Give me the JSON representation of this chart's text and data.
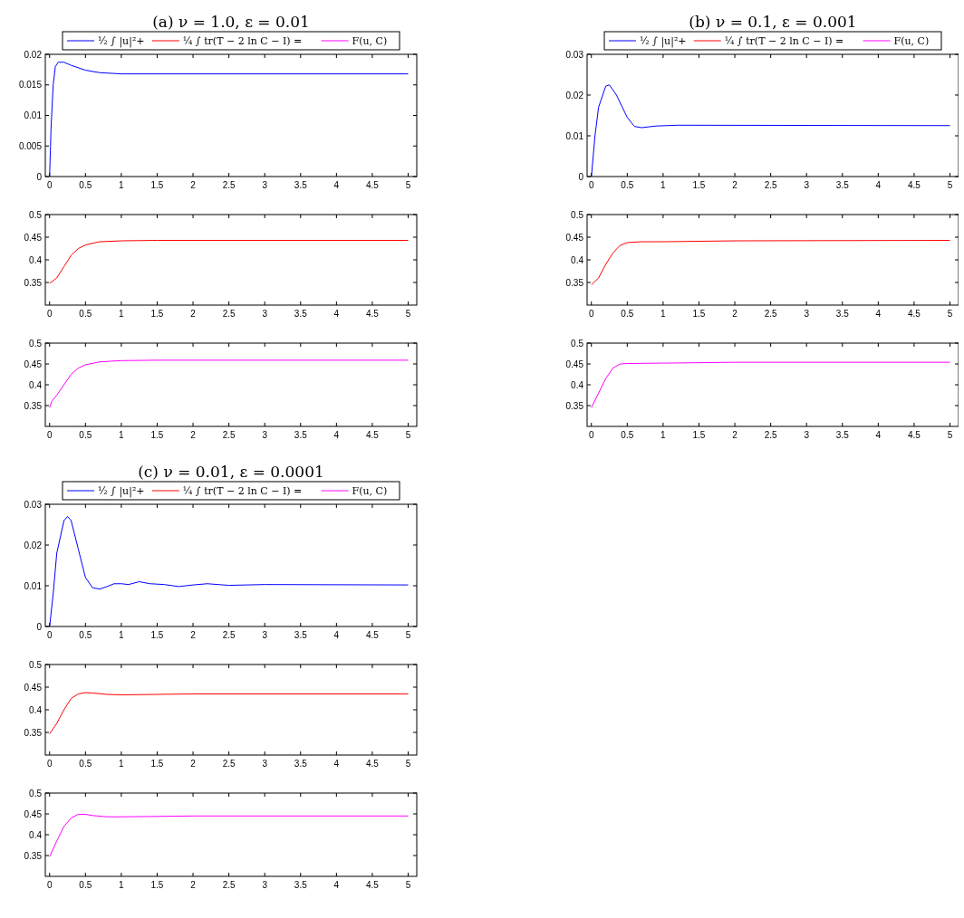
{
  "chart_data": [
    {
      "type": "line",
      "title": "(a) ν = 1.0, ε = 0.01",
      "legend": "top",
      "xlim": [
        -0.06,
        5.12
      ],
      "xticks": [
        0,
        0.5,
        1,
        1.5,
        2,
        2.5,
        3,
        3.5,
        4,
        4.5,
        5
      ],
      "ylim": [
        0,
        0.02
      ],
      "yticks": [
        0,
        0.005,
        0.01,
        0.015,
        0.02
      ],
      "series": [
        {
          "name": "½ ∫ |u|²+",
          "color": "#0000ff",
          "x": [
            0,
            0.02,
            0.05,
            0.08,
            0.12,
            0.2,
            0.3,
            0.5,
            0.7,
            1,
            5
          ],
          "values": [
            0,
            0.008,
            0.015,
            0.018,
            0.0187,
            0.0187,
            0.0182,
            0.0174,
            0.017,
            0.0168,
            0.0168
          ]
        }
      ]
    },
    {
      "type": "line",
      "xlim": [
        -0.06,
        5.12
      ],
      "xticks": [
        0,
        0.5,
        1,
        1.5,
        2,
        2.5,
        3,
        3.5,
        4,
        4.5,
        5
      ],
      "ylim": [
        0.3,
        0.5
      ],
      "yticks": [
        0.35,
        0.4,
        0.45,
        0.5
      ],
      "series": [
        {
          "name": "¼ ∫ tr(T − 2 ln C − I) =",
          "color": "#ff0000",
          "x": [
            0,
            0.1,
            0.2,
            0.3,
            0.4,
            0.5,
            0.7,
            1,
            1.5,
            5
          ],
          "values": [
            0.348,
            0.36,
            0.385,
            0.41,
            0.425,
            0.433,
            0.44,
            0.442,
            0.443,
            0.443
          ]
        }
      ]
    },
    {
      "type": "line",
      "xlim": [
        -0.06,
        5.12
      ],
      "xticks": [
        0,
        0.5,
        1,
        1.5,
        2,
        2.5,
        3,
        3.5,
        4,
        4.5,
        5
      ],
      "ylim": [
        0.3,
        0.5
      ],
      "yticks": [
        0.35,
        0.4,
        0.45,
        0.5
      ],
      "series": [
        {
          "name": "F(u, C)",
          "color": "#ff00ff",
          "x": [
            0,
            0.03,
            0.1,
            0.2,
            0.3,
            0.4,
            0.5,
            0.7,
            1,
            1.5,
            5
          ],
          "values": [
            0.345,
            0.36,
            0.375,
            0.4,
            0.425,
            0.44,
            0.448,
            0.455,
            0.458,
            0.459,
            0.459
          ]
        }
      ]
    },
    {
      "type": "line",
      "title": "(b) ν = 0.1, ε = 0.001",
      "legend": "top",
      "xlim": [
        -0.06,
        5.12
      ],
      "xticks": [
        0,
        0.5,
        1,
        1.5,
        2,
        2.5,
        3,
        3.5,
        4,
        4.5,
        5
      ],
      "ylim": [
        0,
        0.03
      ],
      "yticks": [
        0,
        0.01,
        0.02,
        0.03
      ],
      "series": [
        {
          "name": "½ ∫ |u|²+",
          "color": "#0000ff",
          "x": [
            0,
            0.05,
            0.1,
            0.2,
            0.25,
            0.35,
            0.5,
            0.6,
            0.7,
            0.9,
            1.2,
            5
          ],
          "values": [
            0,
            0.01,
            0.017,
            0.0222,
            0.0225,
            0.02,
            0.0145,
            0.0123,
            0.012,
            0.0124,
            0.0126,
            0.0125
          ]
        }
      ]
    },
    {
      "type": "line",
      "xlim": [
        -0.06,
        5.12
      ],
      "xticks": [
        0,
        0.5,
        1,
        1.5,
        2,
        2.5,
        3,
        3.5,
        4,
        4.5,
        5
      ],
      "ylim": [
        0.3,
        0.5
      ],
      "yticks": [
        0.35,
        0.4,
        0.45,
        0.5
      ],
      "series": [
        {
          "name": "¼ ∫ tr(T − 2 ln C − I) =",
          "color": "#ff0000",
          "x": [
            0,
            0.1,
            0.2,
            0.3,
            0.4,
            0.5,
            0.7,
            1,
            2,
            5
          ],
          "values": [
            0.345,
            0.36,
            0.39,
            0.415,
            0.432,
            0.438,
            0.44,
            0.44,
            0.442,
            0.443
          ]
        }
      ]
    },
    {
      "type": "line",
      "xlim": [
        -0.06,
        5.12
      ],
      "xticks": [
        0,
        0.5,
        1,
        1.5,
        2,
        2.5,
        3,
        3.5,
        4,
        4.5,
        5
      ],
      "ylim": [
        0.3,
        0.5
      ],
      "yticks": [
        0.35,
        0.4,
        0.45,
        0.5
      ],
      "series": [
        {
          "name": "F(u, C)",
          "color": "#ff00ff",
          "x": [
            0,
            0.1,
            0.2,
            0.3,
            0.4,
            0.5,
            1,
            2,
            5
          ],
          "values": [
            0.345,
            0.38,
            0.415,
            0.44,
            0.45,
            0.451,
            0.452,
            0.454,
            0.454
          ]
        }
      ]
    },
    {
      "type": "line",
      "title": "(c) ν = 0.01, ε = 0.0001",
      "legend": "top",
      "xlim": [
        -0.06,
        5.12
      ],
      "xticks": [
        0,
        0.5,
        1,
        1.5,
        2,
        2.5,
        3,
        3.5,
        4,
        4.5,
        5
      ],
      "ylim": [
        0,
        0.03
      ],
      "yticks": [
        0,
        0.01,
        0.02,
        0.03
      ],
      "series": [
        {
          "name": "½ ∫ |u|²+",
          "color": "#0000ff",
          "x": [
            0,
            0.05,
            0.1,
            0.2,
            0.25,
            0.3,
            0.4,
            0.5,
            0.6,
            0.7,
            0.8,
            0.9,
            1,
            1.1,
            1.25,
            1.4,
            1.6,
            1.8,
            2,
            2.2,
            2.5,
            3,
            5
          ],
          "values": [
            0,
            0.008,
            0.018,
            0.026,
            0.027,
            0.026,
            0.019,
            0.012,
            0.0095,
            0.0092,
            0.0098,
            0.0105,
            0.0105,
            0.0103,
            0.011,
            0.0105,
            0.0103,
            0.0098,
            0.0102,
            0.0105,
            0.0101,
            0.0103,
            0.0102
          ]
        }
      ]
    },
    {
      "type": "line",
      "xlim": [
        -0.06,
        5.12
      ],
      "xticks": [
        0,
        0.5,
        1,
        1.5,
        2,
        2.5,
        3,
        3.5,
        4,
        4.5,
        5
      ],
      "ylim": [
        0.3,
        0.5
      ],
      "yticks": [
        0.35,
        0.4,
        0.45,
        0.5
      ],
      "series": [
        {
          "name": "¼ ∫ tr(T − 2 ln C − I) =",
          "color": "#ff0000",
          "x": [
            0,
            0.1,
            0.2,
            0.3,
            0.4,
            0.5,
            0.6,
            0.8,
            1,
            1.5,
            2,
            5
          ],
          "values": [
            0.347,
            0.37,
            0.4,
            0.425,
            0.435,
            0.438,
            0.437,
            0.434,
            0.433,
            0.434,
            0.435,
            0.435
          ]
        }
      ]
    },
    {
      "type": "line",
      "xlim": [
        -0.06,
        5.12
      ],
      "xticks": [
        0,
        0.5,
        1,
        1.5,
        2,
        2.5,
        3,
        3.5,
        4,
        4.5,
        5
      ],
      "ylim": [
        0.3,
        0.5
      ],
      "yticks": [
        0.35,
        0.4,
        0.45,
        0.5
      ],
      "series": [
        {
          "name": "F(u, C)",
          "color": "#ff00ff",
          "x": [
            0,
            0.1,
            0.2,
            0.3,
            0.4,
            0.5,
            0.6,
            0.8,
            1,
            2,
            5
          ],
          "values": [
            0.347,
            0.385,
            0.42,
            0.44,
            0.449,
            0.449,
            0.446,
            0.443,
            0.443,
            0.445,
            0.445
          ]
        }
      ]
    }
  ]
}
